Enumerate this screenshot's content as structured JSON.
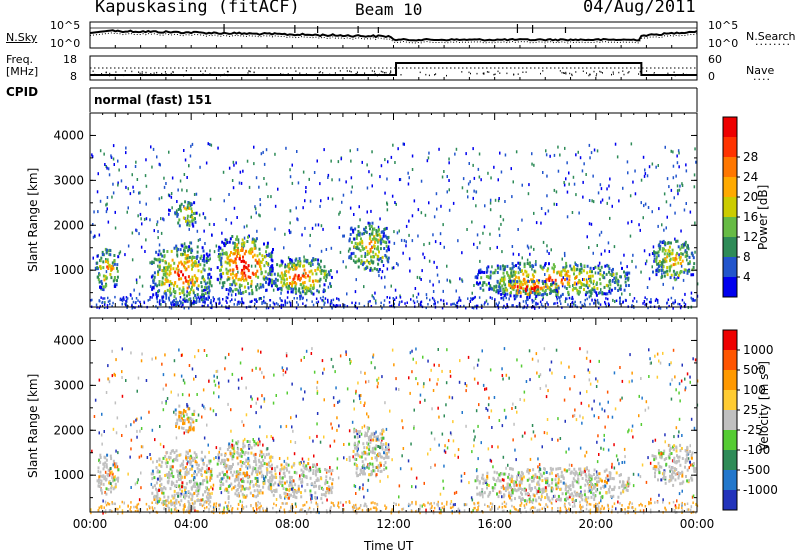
{
  "header": {
    "station": "Kapuskasing (fitACF)",
    "beam": "Beam 10",
    "date": "04/Aug/2011"
  },
  "summary": {
    "nsky_label": "N.Sky",
    "nsearch_label": "N.Search",
    "noise_ticks": [
      "10^5",
      "10^0"
    ],
    "freq_label_1": "Freq.",
    "freq_label_2": "[MHz]",
    "freq_ticks": [
      "18",
      "8"
    ],
    "nave_label": "Nave",
    "nave_ticks": [
      "60",
      "0"
    ],
    "cpid_label": "CPID",
    "cpid_value": "normal (fast) 151"
  },
  "chart_data": [
    {
      "type": "heatmap",
      "title": "",
      "ylabel": "Slant Range [km]",
      "xlabel": "",
      "xlim": [
        "00:00",
        "24:00"
      ],
      "ylim": [
        180,
        4500
      ],
      "yticks": [
        "1000",
        "2000",
        "3000",
        "4000"
      ],
      "colorbar_label": "Power [dB]",
      "colorbar_ticks": [
        "4",
        "8",
        "12",
        "16",
        "20",
        "24",
        "28"
      ],
      "colorbar_colors": [
        "#0000ee",
        "#2255cc",
        "#2e8b57",
        "#66bb44",
        "#cccc00",
        "#ffaa00",
        "#ff7700",
        "#ff3300",
        "#ee0000"
      ],
      "regions": [
        {
          "t": [
            0.2,
            1.1
          ],
          "r": [
            600,
            1500
          ],
          "level": 0.35
        },
        {
          "t": [
            2.4,
            4.8
          ],
          "r": [
            250,
            1600
          ],
          "level": 0.45
        },
        {
          "t": [
            3.3,
            4.2
          ],
          "r": [
            2000,
            2600
          ],
          "level": 0.3
        },
        {
          "t": [
            5.0,
            7.2
          ],
          "r": [
            500,
            1800
          ],
          "level": 0.6
        },
        {
          "t": [
            7.0,
            9.6
          ],
          "r": [
            500,
            1300
          ],
          "level": 0.45
        },
        {
          "t": [
            10.2,
            11.8
          ],
          "r": [
            1000,
            2100
          ],
          "level": 0.3
        },
        {
          "t": [
            15.2,
            21.3
          ],
          "r": [
            450,
            1200
          ],
          "level": 0.4
        },
        {
          "t": [
            16.0,
            18.5
          ],
          "r": [
            450,
            800
          ],
          "level": 0.65
        },
        {
          "t": [
            22.2,
            23.9
          ],
          "r": [
            800,
            1700
          ],
          "level": 0.3
        }
      ]
    },
    {
      "type": "heatmap",
      "title": "",
      "ylabel": "Slant Range [km]",
      "xlabel": "Time UT",
      "xlim": [
        "00:00",
        "24:00"
      ],
      "ylim": [
        180,
        4500
      ],
      "xticks": [
        "00:00",
        "04:00",
        "08:00",
        "12:00",
        "16:00",
        "20:00",
        "00:00"
      ],
      "yticks": [
        "1000",
        "2000",
        "3000",
        "4000"
      ],
      "colorbar_label": "Velocity [m s",
      "colorbar_label_sup": "-1",
      "colorbar_label_end": "]",
      "colorbar_ticks": [
        "1000",
        "500",
        "100",
        "25",
        "-25",
        "-100",
        "-500",
        "-1000"
      ],
      "colorbar_colors": [
        "#2233bb",
        "#2277cc",
        "#2e8b57",
        "#55cc33",
        "#c0c0c0",
        "#ffcc33",
        "#ff9900",
        "#ff5500",
        "#ee0000"
      ],
      "regions": [
        {
          "t": [
            0.2,
            1.1
          ],
          "r": [
            600,
            1500
          ],
          "level": 0.5
        },
        {
          "t": [
            2.4,
            4.8
          ],
          "r": [
            250,
            1600
          ],
          "level": 0.5
        },
        {
          "t": [
            3.3,
            4.2
          ],
          "r": [
            2000,
            2600
          ],
          "level": 0.7
        },
        {
          "t": [
            5.0,
            7.2
          ],
          "r": [
            500,
            1800
          ],
          "level": 0.5
        },
        {
          "t": [
            7.0,
            9.6
          ],
          "r": [
            500,
            1300
          ],
          "level": 0.5
        },
        {
          "t": [
            10.2,
            11.8
          ],
          "r": [
            1000,
            2100
          ],
          "level": 0.4
        },
        {
          "t": [
            15.2,
            21.3
          ],
          "r": [
            450,
            1200
          ],
          "level": 0.5
        },
        {
          "t": [
            22.2,
            23.9
          ],
          "r": [
            800,
            1700
          ],
          "level": 0.5
        }
      ]
    }
  ]
}
